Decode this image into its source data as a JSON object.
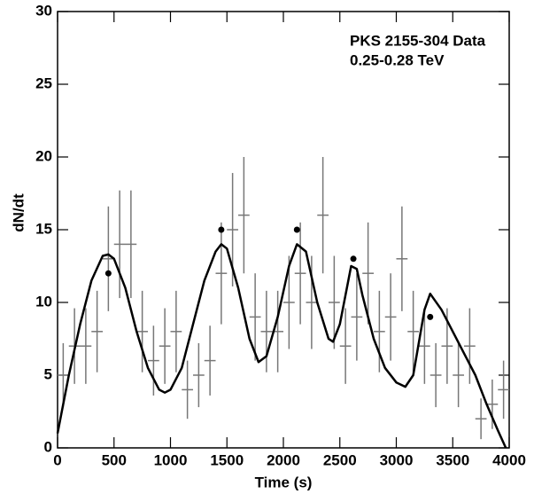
{
  "chart_data": {
    "type": "scatter",
    "annotations": [
      "PKS 2155-304 Data",
      "0.25-0.28 TeV"
    ],
    "x_label": "Time (s)",
    "y_label": "dN/dt",
    "xlim": [
      0,
      4000
    ],
    "ylim": [
      0,
      30
    ],
    "xticks": [
      0,
      500,
      1000,
      1500,
      2000,
      2500,
      3000,
      3500,
      4000
    ],
    "yticks": [
      0,
      5,
      10,
      15,
      20,
      25,
      30
    ],
    "series": [
      {
        "type": "errorbar",
        "color": "#777777",
        "x": [
          50,
          150,
          250,
          350,
          450,
          550,
          650,
          750,
          850,
          950,
          1050,
          1150,
          1250,
          1350,
          1450,
          1550,
          1650,
          1750,
          1850,
          1950,
          2050,
          2150,
          2250,
          2350,
          2450,
          2550,
          2650,
          2750,
          2850,
          2950,
          3050,
          3150,
          3250,
          3350,
          3450,
          3550,
          3650,
          3750,
          3850,
          3950
        ],
        "values": [
          5,
          7,
          7,
          8,
          13,
          14,
          14,
          8,
          6,
          7,
          8,
          4,
          5,
          6,
          12,
          15,
          16,
          9,
          8,
          8,
          10,
          12,
          10,
          16,
          10,
          7,
          9,
          12,
          8,
          9,
          13,
          8,
          7,
          5,
          7,
          5,
          7,
          2,
          3,
          4
        ],
        "errors": [
          2.2,
          2.6,
          2.6,
          2.8,
          3.6,
          3.7,
          3.7,
          2.8,
          2.4,
          2.6,
          2.8,
          2,
          2.2,
          2.4,
          3.5,
          3.9,
          4,
          3,
          2.8,
          2.8,
          3.2,
          3.5,
          3.2,
          4,
          3.2,
          2.6,
          3,
          3.5,
          2.8,
          3,
          3.6,
          2.8,
          2.6,
          2.2,
          2.6,
          2.2,
          2.6,
          1.4,
          1.7,
          2
        ],
        "xerrors": [
          50,
          50,
          50,
          50,
          50,
          50,
          50,
          50,
          50,
          50,
          50,
          50,
          50,
          50,
          50,
          50,
          50,
          50,
          50,
          50,
          50,
          50,
          50,
          50,
          50,
          50,
          50,
          50,
          50,
          50,
          50,
          50,
          50,
          50,
          50,
          50,
          50,
          50,
          50,
          50
        ]
      },
      {
        "type": "points",
        "color": "#000000",
        "x": [
          450,
          1450,
          2120,
          2620,
          3300
        ],
        "values": [
          12,
          15,
          15,
          13,
          9
        ]
      },
      {
        "type": "line",
        "color": "#000000",
        "x": [
          0,
          100,
          200,
          300,
          400,
          450,
          500,
          600,
          700,
          800,
          900,
          950,
          1000,
          1100,
          1200,
          1300,
          1400,
          1450,
          1500,
          1600,
          1700,
          1780,
          1850,
          1950,
          2050,
          2120,
          2200,
          2300,
          2400,
          2440,
          2500,
          2600,
          2650,
          2700,
          2800,
          2900,
          3000,
          3080,
          3150,
          3250,
          3300,
          3400,
          3500,
          3600,
          3700,
          3800,
          3900,
          3970
        ],
        "values": [
          1,
          5,
          8.5,
          11.5,
          13.2,
          13.3,
          13,
          11,
          8,
          5.5,
          4,
          3.8,
          4,
          5.5,
          8.5,
          11.5,
          13.5,
          14,
          13.7,
          11,
          7.5,
          5.9,
          6.3,
          9,
          12.5,
          14,
          13.5,
          10,
          7.5,
          7.3,
          8.5,
          12.5,
          12.3,
          10.5,
          7.5,
          5.5,
          4.5,
          4.2,
          5,
          9.5,
          10.6,
          9.5,
          8,
          6.5,
          5,
          3,
          1.2,
          0
        ]
      }
    ]
  }
}
